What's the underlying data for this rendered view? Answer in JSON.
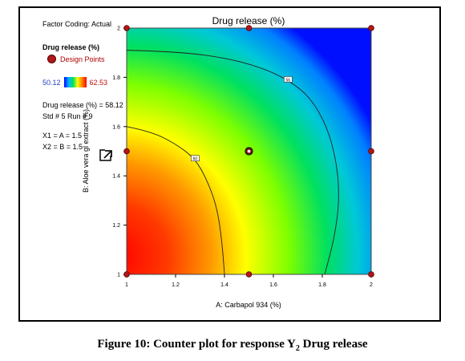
{
  "sidebar": {
    "factor_coding": "Factor Coding: Actual",
    "response_title": "Drug release (%)",
    "legend_design_points": "Design Points",
    "scale_min": "50.12",
    "scale_max": "62.53",
    "info_value": "Drug release (%) = 58.12",
    "info_std_run": "Std # 5 Run # 9",
    "info_x1": "X1 = A = 1.5",
    "info_x2": "X2 = B = 1.5"
  },
  "icons": {
    "pop_out": "external-link-icon"
  },
  "colors": {
    "low": "#0000ff",
    "mid": "#ffff00",
    "high": "#ff0000",
    "design_point": "#b01818"
  },
  "chart_data": {
    "type": "heatmap",
    "title": "Drug release (%)",
    "xlabel": "A: Carbapol 934 (%)",
    "ylabel": "B: Aloe vera gl extract (%)",
    "xlim": [
      1,
      2
    ],
    "ylim": [
      1,
      2
    ],
    "x_ticks": [
      "1",
      "1.2",
      "1.4",
      "1.6",
      "1.8",
      "2"
    ],
    "y_ticks": [
      "1",
      "1.2",
      "1.4",
      "1.6",
      "1.8",
      "2"
    ],
    "color_range": [
      50.12,
      62.53
    ],
    "contours": [
      {
        "label": "60",
        "value": 60,
        "points": [
          [
            1.0,
            1.6
          ],
          [
            1.1,
            1.58
          ],
          [
            1.2,
            1.53
          ],
          [
            1.28,
            1.47
          ],
          [
            1.33,
            1.38
          ],
          [
            1.37,
            1.27
          ],
          [
            1.39,
            1.13
          ],
          [
            1.4,
            1.0
          ]
        ]
      },
      {
        "label": "56",
        "value": 56,
        "points": [
          [
            1.0,
            1.91
          ],
          [
            1.2,
            1.905
          ],
          [
            1.4,
            1.88
          ],
          [
            1.55,
            1.84
          ],
          [
            1.66,
            1.79
          ],
          [
            1.75,
            1.72
          ],
          [
            1.82,
            1.6
          ],
          [
            1.86,
            1.45
          ],
          [
            1.87,
            1.3
          ],
          [
            1.85,
            1.15
          ],
          [
            1.81,
            1.0
          ]
        ]
      }
    ],
    "design_points": [
      [
        1,
        1
      ],
      [
        1.5,
        1
      ],
      [
        2,
        1
      ],
      [
        1,
        1.5
      ],
      [
        1.5,
        1.5
      ],
      [
        2,
        1.5
      ],
      [
        1,
        2
      ],
      [
        1.5,
        2
      ],
      [
        2,
        2
      ]
    ],
    "selected_point": [
      1.5,
      1.5
    ]
  },
  "caption": {
    "main": "Figure 10: Counter plot for response Y",
    "sub": "2",
    "end": " Drug release"
  }
}
